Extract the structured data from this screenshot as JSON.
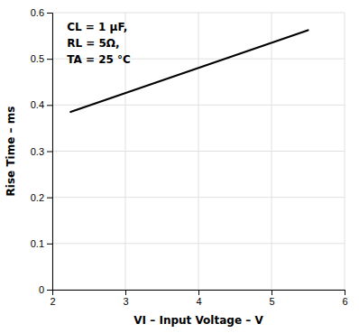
{
  "chart_data": {
    "type": "line",
    "xlabel": "VI – Input Voltage – V",
    "ylabel": "Rise Time – ms",
    "x": [
      2.25,
      5.5
    ],
    "values": [
      0.385,
      0.562
    ],
    "color": "#000000",
    "xlim": [
      2,
      6
    ],
    "ylim": [
      0,
      0.6
    ],
    "xticks": [
      2,
      3,
      4,
      5,
      6
    ],
    "yticks": [
      0,
      0.1,
      0.2,
      0.3,
      0.4,
      0.5,
      0.6
    ],
    "grid": true,
    "annotations": [
      "CL = 1 μF,",
      "RL = 5Ω,",
      "TA = 25 °C"
    ]
  }
}
